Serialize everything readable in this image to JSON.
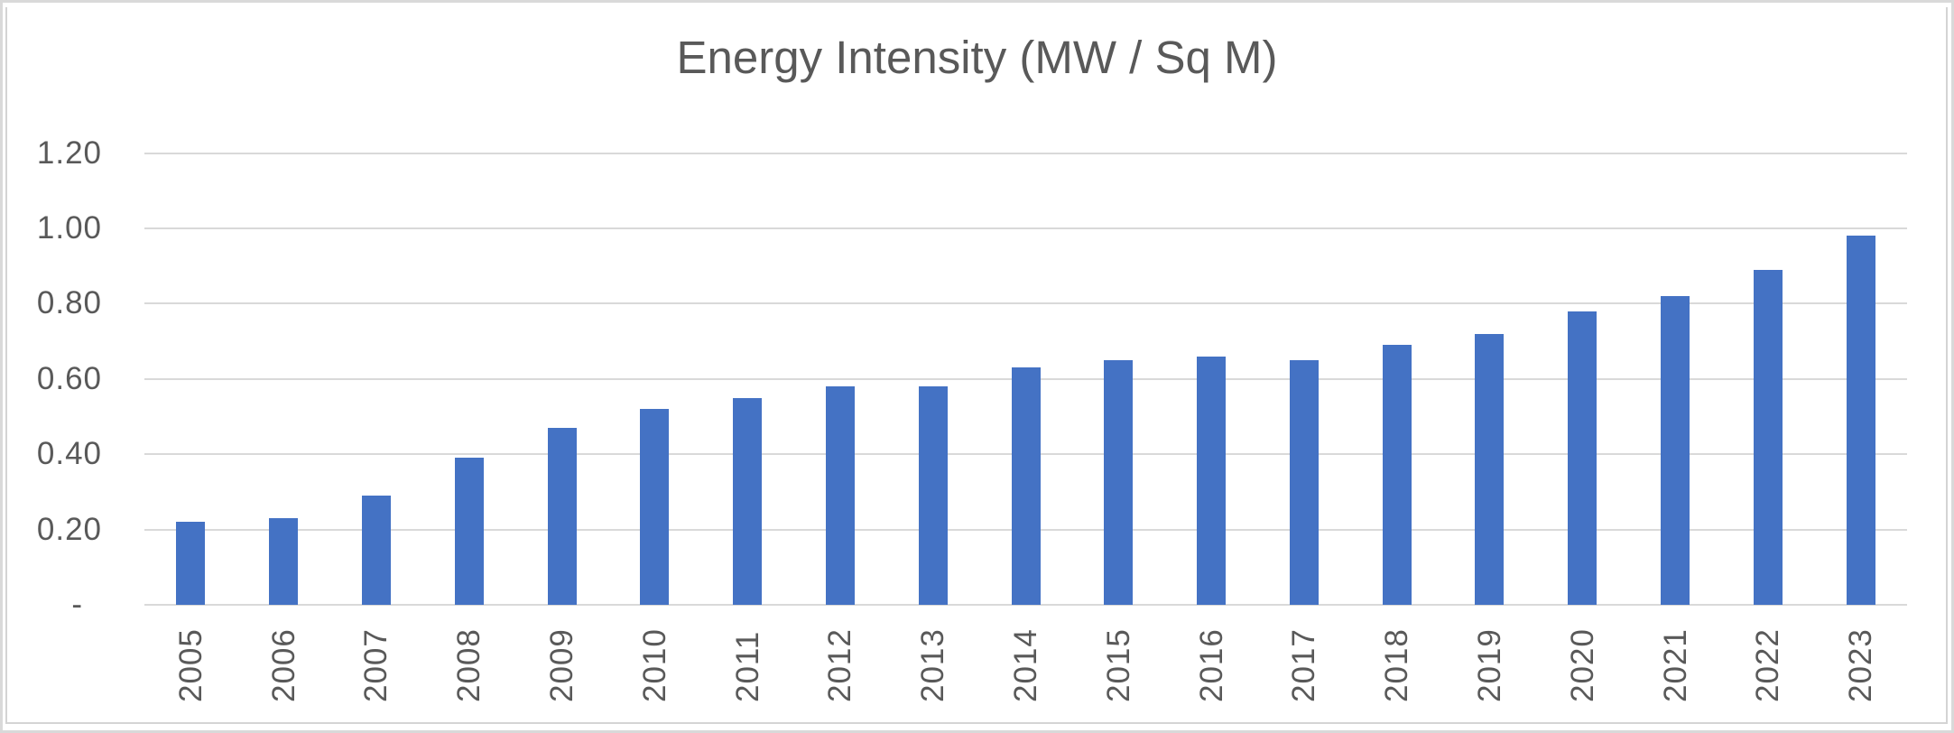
{
  "chart_data": {
    "type": "bar",
    "title": "Energy Intensity (MW / Sq M)",
    "categories": [
      "2005",
      "2006",
      "2007",
      "2008",
      "2009",
      "2010",
      "2011",
      "2012",
      "2013",
      "2014",
      "2015",
      "2016",
      "2017",
      "2018",
      "2019",
      "2020",
      "2021",
      "2022",
      "2023"
    ],
    "values": [
      0.22,
      0.23,
      0.29,
      0.39,
      0.47,
      0.52,
      0.55,
      0.58,
      0.58,
      0.63,
      0.65,
      0.66,
      0.65,
      0.69,
      0.72,
      0.78,
      0.82,
      0.89,
      0.98
    ],
    "xlabel": "",
    "ylabel": "",
    "ylim": [
      0,
      1.2
    ],
    "ytick_step": 0.2,
    "ytick_labels": [
      "-",
      "0.20",
      "0.40",
      "0.60",
      "0.80",
      "1.00",
      "1.20"
    ],
    "x_tick_rotation_deg": -90,
    "grid": true,
    "legend_position": "none",
    "bar_color": "#4472C4",
    "gridline_color": "#D9D9D9",
    "text_color": "#595959",
    "frame_color": "#D9D9D9"
  }
}
